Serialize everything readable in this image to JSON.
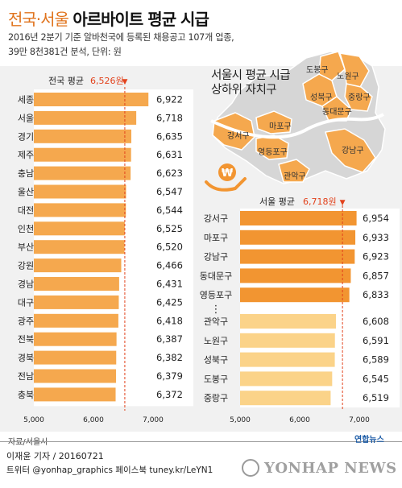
{
  "header": {
    "title_part1": "전국·서울",
    "title_part2": "아르바이트 평균 시급",
    "subtitle_line1": "2016년 2분기 기준 알바천국에 등록된 채용공고 107개 업종,",
    "subtitle_line2": "39만 8천381건 분석, 단위: 원"
  },
  "source": "자료/서울시",
  "footer": {
    "byline": "이재윤 기자 / 20160721",
    "social": "트위터 @yonhap_graphics  페이스북 tuney.kr/LeYN1",
    "logo_text": "연합뉴스",
    "watermark": "YONHAP NEWS"
  },
  "map": {
    "title_line1": "서울시 평균 시급",
    "title_line2": "상하위 자치구",
    "districts": [
      "도봉구",
      "노원구",
      "성북구",
      "중랑구",
      "동대문구",
      "마포구",
      "강서구",
      "영등포구",
      "강남구",
      "관악구"
    ]
  },
  "colors": {
    "left_bar": "#f5a84e",
    "right_top_bar": "#f29531",
    "right_bottom_bar": "#fbd389",
    "avg_marker": "#e2421c",
    "map_highlight": "#f5a84e",
    "map_base": "#d6d6d6"
  },
  "chart_data": [
    {
      "type": "bar",
      "orientation": "horizontal",
      "reference": {
        "label": "전국 평균",
        "value": 6526,
        "value_label": "6,526원",
        "marker": "▼"
      },
      "categories": [
        "세종",
        "서울",
        "경기",
        "제주",
        "충남",
        "울산",
        "대전",
        "인천",
        "부산",
        "강원",
        "경남",
        "대구",
        "광주",
        "전북",
        "경북",
        "전남",
        "충북"
      ],
      "values": [
        6922,
        6718,
        6635,
        6631,
        6623,
        6547,
        6544,
        6525,
        6520,
        6466,
        6431,
        6425,
        6418,
        6387,
        6382,
        6379,
        6372
      ],
      "value_labels": [
        "6,922",
        "6,718",
        "6,635",
        "6,631",
        "6,623",
        "6,547",
        "6,544",
        "6,525",
        "6,520",
        "6,466",
        "6,431",
        "6,425",
        "6,418",
        "6,387",
        "6,382",
        "6,379",
        "6,372"
      ],
      "xlim": [
        5000,
        7000
      ],
      "xticks": [
        5000,
        6000,
        7000
      ],
      "xtick_labels": [
        "5,000",
        "6,000",
        "7,000"
      ]
    },
    {
      "type": "bar",
      "orientation": "horizontal",
      "reference": {
        "label": "서울 평균",
        "value": 6718,
        "value_label": "6,718원",
        "marker": "▼"
      },
      "gap_marker": "⋮",
      "top_categories": [
        "강서구",
        "마포구",
        "강남구",
        "동대문구",
        "영등포구"
      ],
      "top_values": [
        6954,
        6933,
        6923,
        6857,
        6833
      ],
      "top_value_labels": [
        "6,954",
        "6,933",
        "6,923",
        "6,857",
        "6,833"
      ],
      "bottom_categories": [
        "관악구",
        "노원구",
        "성북구",
        "도봉구",
        "중랑구"
      ],
      "bottom_values": [
        6608,
        6591,
        6589,
        6545,
        6519
      ],
      "bottom_value_labels": [
        "6,608",
        "6,591",
        "6,589",
        "6,545",
        "6,519"
      ],
      "xlim": [
        5000,
        7000
      ],
      "xticks": [
        5000,
        6000,
        7000
      ],
      "xtick_labels": [
        "5,000",
        "6,000",
        "7,000"
      ]
    }
  ]
}
